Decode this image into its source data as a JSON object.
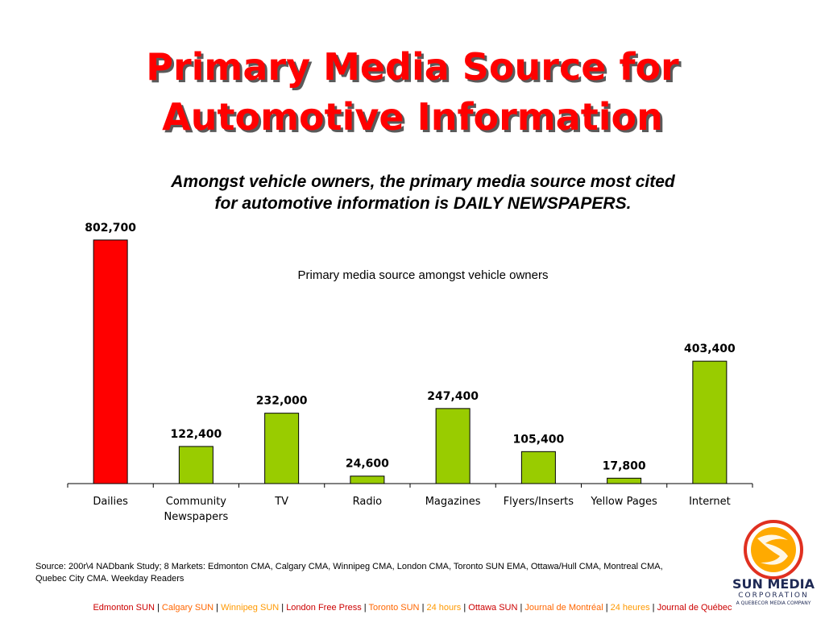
{
  "page": {
    "title_line1": "Primary Media Source for",
    "title_line2": "Automotive Information",
    "subtitle_line1": "Amongst vehicle owners, the primary media source most cited",
    "subtitle_line2": "for automotive information is DAILY NEWSPAPERS.",
    "source_line1": "Source: 200r\\4 NADbank Study; 8 Markets: Edmonton CMA, Calgary CMA, Winnipeg CMA, London CMA, Toronto SUN EMA, Ottawa/Hull CMA, Montreal CMA,",
    "source_line2": "Quebec City CMA. Weekday Readers"
  },
  "chart_data": {
    "type": "bar",
    "title": "Primary media source amongst vehicle owners",
    "categories": [
      "Dailies",
      "Community Newspapers",
      "TV",
      "Radio",
      "Magazines",
      "Flyers/Inserts",
      "Yellow Pages",
      "Internet"
    ],
    "category_lines": [
      [
        "Dailies"
      ],
      [
        "Community",
        "Newspapers"
      ],
      [
        "TV"
      ],
      [
        "Radio"
      ],
      [
        "Magazines"
      ],
      [
        "Flyers/Inserts"
      ],
      [
        "Yellow Pages"
      ],
      [
        "Internet"
      ]
    ],
    "values": [
      802700,
      122400,
      232000,
      24600,
      247400,
      105400,
      17800,
      403400
    ],
    "value_labels": [
      "802,700",
      "122,400",
      "232,000",
      "24,600",
      "247,400",
      "105,400",
      "17,800",
      "403,400"
    ],
    "highlight_index": 0,
    "colors": {
      "highlight": "#ff0000",
      "default": "#99cc00",
      "outline": "#000000"
    },
    "ylim": [
      0,
      850000
    ],
    "grid": false,
    "legend": "none"
  },
  "footer": {
    "items": [
      {
        "label": "Edmonton SUN",
        "color": "#cc0000"
      },
      {
        "label": "Calgary SUN",
        "color": "#ff6600"
      },
      {
        "label": "Winnipeg SUN",
        "color": "#ff9900"
      },
      {
        "label": "London Free Press",
        "color": "#cc0000"
      },
      {
        "label": "Toronto SUN",
        "color": "#ff6600"
      },
      {
        "label": "24 hours",
        "color": "#ff9900"
      },
      {
        "label": "Ottawa SUN",
        "color": "#cc0000"
      },
      {
        "label": "Journal de Montréal",
        "color": "#ff6600"
      },
      {
        "label": "24 heures",
        "color": "#ff9900"
      },
      {
        "label": "Journal de Québec",
        "color": "#cc0000"
      }
    ],
    "separator": "|"
  },
  "logo": {
    "name": "SUN MEDIA",
    "corporation": "CORPORATION",
    "tagline": "A QUEBECOR MEDIA COMPANY",
    "colors": {
      "ring": "#e03020",
      "sun": "#ffaa00",
      "text": "#1f2a55"
    }
  }
}
